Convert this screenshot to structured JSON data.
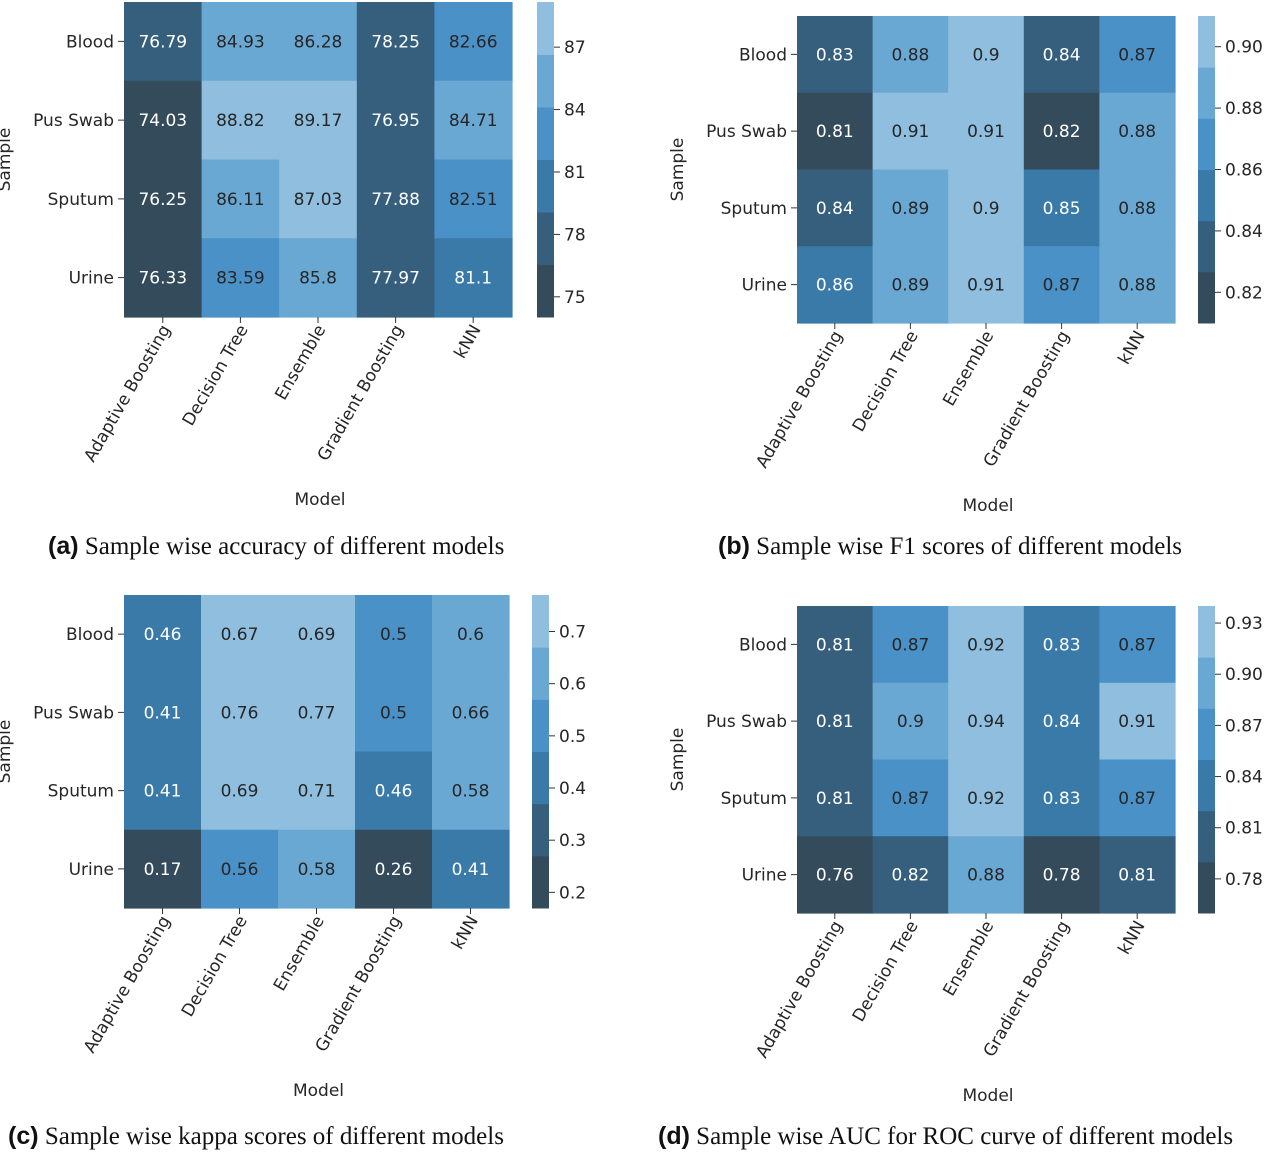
{
  "chart_data": [
    {
      "type": "heatmap",
      "caption_label": "(a)",
      "caption_text": "Sample wise accuracy of different models",
      "xlabel": "Model",
      "ylabel": "Sample",
      "rows": [
        "Blood",
        "Pus Swab",
        "Sputum",
        "Urine"
      ],
      "columns": [
        "Adaptive Boosting",
        "Decision Tree",
        "Ensemble",
        "Gradient Boosting",
        "kNN"
      ],
      "values": [
        [
          "76.79",
          "84.93",
          "86.28",
          "78.25",
          "82.66"
        ],
        [
          "74.03",
          "88.82",
          "89.17",
          "76.95",
          "84.71"
        ],
        [
          "76.25",
          "86.11",
          "87.03",
          "77.88",
          "82.51"
        ],
        [
          "76.33",
          "83.59",
          "85.8",
          "77.97",
          "81.1"
        ]
      ],
      "colorbar_ticks": [
        "75",
        "78",
        "81",
        "84",
        "87"
      ],
      "vmin": 74.03,
      "vmax": 89.17
    },
    {
      "type": "heatmap",
      "caption_label": "(b)",
      "caption_text": "Sample wise F1 scores of different models",
      "xlabel": "Model",
      "ylabel": "Sample",
      "rows": [
        "Blood",
        "Pus Swab",
        "Sputum",
        "Urine"
      ],
      "columns": [
        "Adaptive Boosting",
        "Decision Tree",
        "Ensemble",
        "Gradient Boosting",
        "kNN"
      ],
      "values": [
        [
          "0.83",
          "0.88",
          "0.9",
          "0.84",
          "0.87"
        ],
        [
          "0.81",
          "0.91",
          "0.91",
          "0.82",
          "0.88"
        ],
        [
          "0.84",
          "0.89",
          "0.9",
          "0.85",
          "0.88"
        ],
        [
          "0.86",
          "0.89",
          "0.91",
          "0.87",
          "0.88"
        ]
      ],
      "colorbar_ticks": [
        "0.82",
        "0.84",
        "0.86",
        "0.88",
        "0.90"
      ],
      "vmin": 0.81,
      "vmax": 0.91
    },
    {
      "type": "heatmap",
      "caption_label": "(c)",
      "caption_text": "Sample wise kappa scores of different models",
      "xlabel": "Model",
      "ylabel": "Sample",
      "rows": [
        "Blood",
        "Pus Swab",
        "Sputum",
        "Urine"
      ],
      "columns": [
        "Adaptive Boosting",
        "Decision Tree",
        "Ensemble",
        "Gradient Boosting",
        "kNN"
      ],
      "values": [
        [
          "0.46",
          "0.67",
          "0.69",
          "0.5",
          "0.6"
        ],
        [
          "0.41",
          "0.76",
          "0.77",
          "0.5",
          "0.66"
        ],
        [
          "0.41",
          "0.69",
          "0.71",
          "0.46",
          "0.58"
        ],
        [
          "0.17",
          "0.56",
          "0.58",
          "0.26",
          "0.41"
        ]
      ],
      "colorbar_ticks": [
        "0.2",
        "0.3",
        "0.4",
        "0.5",
        "0.6",
        "0.7"
      ],
      "vmin": 0.17,
      "vmax": 0.77
    },
    {
      "type": "heatmap",
      "caption_label": "(d)",
      "caption_text": "Sample wise AUC for ROC curve of different models",
      "xlabel": "Model",
      "ylabel": "Sample",
      "rows": [
        "Blood",
        "Pus Swab",
        "Sputum",
        "Urine"
      ],
      "columns": [
        "Adaptive Boosting",
        "Decision Tree",
        "Ensemble",
        "Gradient Boosting",
        "kNN"
      ],
      "values": [
        [
          "0.81",
          "0.87",
          "0.92",
          "0.83",
          "0.87"
        ],
        [
          "0.81",
          "0.9",
          "0.94",
          "0.84",
          "0.91"
        ],
        [
          "0.81",
          "0.87",
          "0.92",
          "0.83",
          "0.87"
        ],
        [
          "0.76",
          "0.82",
          "0.88",
          "0.78",
          "0.81"
        ]
      ],
      "colorbar_ticks": [
        "0.78",
        "0.81",
        "0.84",
        "0.87",
        "0.90",
        "0.93"
      ],
      "vmin": 0.76,
      "vmax": 0.94
    }
  ],
  "palette": [
    "#344b5c",
    "#355f7c",
    "#3a7aa9",
    "#4a91c7",
    "#6aa8d4",
    "#8fbedf"
  ]
}
